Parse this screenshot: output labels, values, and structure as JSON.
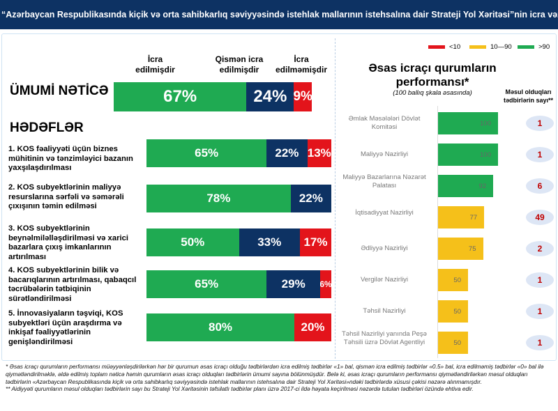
{
  "header": {
    "title": "“Azərbaycan Respublikasında kiçik və orta sahibkarlıq səviyyəsində istehlak mallarının istehsalına dair Strateji Yol Xəritəsi”nin icra vəziyyəti"
  },
  "chart_data": [
    {
      "type": "bar",
      "orientation": "horizontal-stacked",
      "series_names": [
        "İcra edilmişdir",
        "Qismən icra edilmişdir",
        "İcra edilməmişdir"
      ],
      "overall": {
        "label": "ÜMUMİ NƏTİCƏ",
        "values": [
          67,
          24,
          9
        ],
        "labels": [
          "67%",
          "24%",
          "9%"
        ]
      },
      "section_title": "HƏDƏFLƏR",
      "categories": [
        {
          "label": "1. KOS fəaliyyəti üçün biznes mühitinin və tənzimləyici bazanın yaxşılaşdırılması",
          "values": [
            65,
            22,
            13
          ],
          "labels": [
            "65%",
            "22%",
            "13%"
          ]
        },
        {
          "label": "2. KOS subyektlərinin maliyyə resurslarına sərfəli və səmərəli çıxışının təmin edilməsi",
          "values": [
            78,
            22,
            0
          ],
          "labels": [
            "78%",
            "22%",
            ""
          ]
        },
        {
          "label": "3. KOS subyektlərinin beynəlmiləlləşdirilməsi və xarici bazarlara çıxış imkanlarının artırılması",
          "values": [
            50,
            33,
            17
          ],
          "labels": [
            "50%",
            "33%",
            "17%"
          ]
        },
        {
          "label": "4. KOS subyektlərinin bilik və bacarıqlarının artırılması, qabaqcıl təcrübələrin tətbiqinin sürətləndirilməsi",
          "values": [
            65,
            29,
            6
          ],
          "labels": [
            "65%",
            "29%",
            "6%"
          ]
        },
        {
          "label": "5. İnnovasiyaların təşviqi, KOS subyektləri üçün araşdırma və inkişaf fəaliyyətlərinin genişləndirilməsi",
          "values": [
            80,
            0,
            20
          ],
          "labels": [
            "80%",
            "",
            "20%"
          ]
        }
      ],
      "colors": [
        "#1faa52",
        "#0d3263",
        "#e3141b"
      ]
    },
    {
      "type": "bar",
      "orientation": "horizontal",
      "title": "Əsas icraçı qurumların performansı*",
      "subtitle": "(100 ballıq şkala əsasında)",
      "xlim": [
        0,
        100
      ],
      "legend": [
        {
          "label": "<10",
          "color": "#e3141b"
        },
        {
          "label": "10—90",
          "color": "#f5c01a"
        },
        {
          "label": ">90",
          "color": "#1faa52"
        }
      ],
      "count_header": "Məsul olduqları tədbirlərin sayı**",
      "items": [
        {
          "label": "Əmlak Məsələləri Dövlət Komitəsi",
          "value": 100,
          "count": "1"
        },
        {
          "label": "Maliyyə Nazirliyi",
          "value": 100,
          "count": "1"
        },
        {
          "label": "Maliyyə Bazarlarına Nəzarət Palatası",
          "value": 92,
          "count": "6"
        },
        {
          "label": "İqtisadiyyat Nazirliyi",
          "value": 77,
          "count": "49"
        },
        {
          "label": "Ədliyyə Nazirliyi",
          "value": 75,
          "count": "2"
        },
        {
          "label": "Vergilər Nazirliyi",
          "value": 50,
          "count": "1"
        },
        {
          "label": "Təhsil Nazirliyi",
          "value": 50,
          "count": "1"
        },
        {
          "label": "Təhsil Nazirliyi yanında Peşə Təhsili üzrə Dövlət Agentliyi",
          "value": 50,
          "count": "1"
        }
      ]
    }
  ],
  "notes": [
    "*  Əsas icraçı qurumların performansı müəyyənləşdirilərkən hər bir qurumun əsas icraçı olduğu tədbirlərdən icra edilmiş tədbirlər «1» bal, qismən icra edilmiş tədbirlər «0.5» bal, icra edilməmiş tədbirlər «0» bal ilə qiymətləndirilməklə, əldə edilmiş toplam nəticə həmin qurumların əsas icraçı olduqları tədbirlərin ümumi sayına bölünmüşdür. Belə ki, əsas icraçı qurumların performansı qiymətləndirilərkən məsul olduqları tədbirlərin «Azərbaycan Respublikasında kiçik və orta sahibkarlıq səviyyəsində istehlak mallarının istehsalına dair Strateji Yol Xəritəsi»ndəki tədbirlərdə xüsusi çəkisi nəzərə alınmamışdır.",
    "** Aidiyyəti qurumların məsul olduqları tədbirlərin sayı bu Strateji Yol Xəritəsinin təfsilatlı tədbirlər planı üzrə 2017-ci ildə həyata keçirilməsi nəzərdə tutulan tədbirləri özündə ehtiva edir."
  ]
}
